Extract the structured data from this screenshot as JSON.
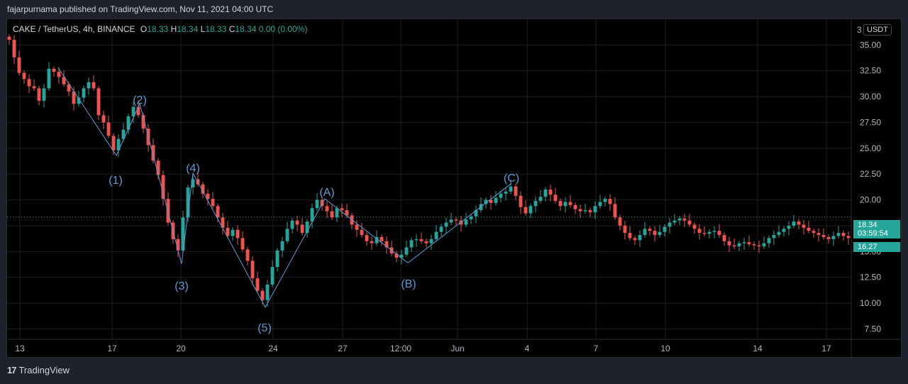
{
  "header": {
    "published": "fajarpurnama published on TradingView.com, Nov 11, 2021 04:00 UTC"
  },
  "legend": {
    "symbol": "CAKE / TetherUS, 4h, BINANCE",
    "o_label": "O",
    "o": "18.33",
    "h_label": "H",
    "h": "18.34",
    "l_label": "L",
    "l": "18.33",
    "c_label": "C",
    "c": "18.34",
    "change": "0.00 (0.00%)"
  },
  "currency_button": "USDT",
  "price_axis_stub": "3",
  "price_tags": {
    "last": "18.34",
    "countdown": "03:59:54",
    "other": "16.27"
  },
  "footer": {
    "brand": "TradingView",
    "logo": "17"
  },
  "colors": {
    "up": "#26a69a",
    "down": "#ef5350",
    "wave": "#5b9bd5",
    "tag": "#26a69a"
  },
  "chart_data": {
    "type": "candlestick",
    "timeframe": "4h",
    "ylim": [
      6.5,
      37.5
    ],
    "y_ticks": [
      "35.00",
      "32.50",
      "30.00",
      "27.50",
      "25.00",
      "22.50",
      "20.00",
      "17.50",
      "15.00",
      "12.50",
      "10.00",
      "7.50"
    ],
    "x_ticks": [
      "13",
      "17",
      "20",
      "24",
      "27",
      "12:00",
      "Jun",
      "4",
      "7",
      "10",
      "14",
      "17"
    ],
    "last_price": 18.34,
    "other_price": 16.27,
    "wave_labels": [
      {
        "text": "(1)",
        "x": "17",
        "y": 24.3
      },
      {
        "text": "(2)",
        "x": "18",
        "y": 29.3
      },
      {
        "text": "(3)",
        "x": "20",
        "y": 13.8
      },
      {
        "text": "(4)",
        "x": "20",
        "y": 22.6
      },
      {
        "text": "(5)",
        "x": "24",
        "y": 9.6
      },
      {
        "text": "(A)",
        "x": "26",
        "y": 20.1
      },
      {
        "text": "(B)",
        "x": "May 31",
        "y": 13.9
      },
      {
        "text": "(C)",
        "x": "Jun 3",
        "y": 21.6
      }
    ],
    "close_path": [
      35.5,
      33.8,
      32.3,
      31.7,
      31.0,
      30.8,
      29.6,
      30.8,
      32.7,
      32.4,
      31.9,
      31.2,
      30.5,
      29.3,
      29.9,
      30.8,
      31.4,
      30.8,
      28.2,
      27.5,
      26.2,
      24.8,
      25.9,
      26.8,
      28.1,
      29.0,
      28.2,
      26.9,
      25.3,
      23.8,
      22.4,
      20.1,
      17.8,
      16.2,
      15.1,
      18.3,
      21.2,
      22.0,
      21.5,
      20.6,
      20.1,
      19.4,
      18.3,
      17.3,
      16.5,
      17.1,
      16.3,
      15.2,
      14.1,
      12.4,
      11.2,
      10.3,
      11.8,
      13.5,
      15.1,
      16.0,
      17.2,
      18.0,
      17.6,
      16.8,
      17.9,
      19.2,
      20.0,
      19.4,
      18.9,
      18.3,
      19.2,
      19.0,
      18.5,
      17.6,
      17.1,
      16.6,
      16.0,
      15.8,
      16.4,
      16.0,
      15.4,
      14.8,
      14.4,
      14.7,
      15.4,
      16.1,
      16.2,
      16.0,
      15.8,
      16.2,
      16.9,
      17.4,
      17.8,
      18.1,
      18.0,
      17.6,
      18.1,
      18.4,
      19.0,
      19.6,
      20.0,
      19.7,
      20.2,
      20.6,
      20.8,
      21.3,
      20.4,
      19.3,
      18.7,
      19.4,
      19.9,
      20.3,
      21.0,
      20.5,
      19.9,
      19.4,
      19.8,
      19.5,
      19.1,
      18.9,
      19.0,
      18.8,
      19.4,
      19.8,
      20.1,
      19.6,
      18.3,
      17.5,
      16.8,
      16.3,
      16.1,
      16.6,
      17.2,
      17.0,
      16.6,
      16.9,
      17.4,
      17.8,
      18.0,
      18.2,
      18.0,
      17.6,
      17.2,
      16.8,
      16.7,
      16.9,
      17.0,
      16.6,
      16.0,
      15.6,
      15.5,
      15.8,
      15.9,
      15.7,
      15.6,
      15.5,
      15.8,
      16.3,
      16.6,
      16.9,
      17.2,
      17.5,
      17.9,
      17.6,
      17.3,
      17.0,
      16.8,
      16.6,
      16.4,
      16.2,
      16.5,
      16.8,
      16.5,
      16.3
    ]
  }
}
